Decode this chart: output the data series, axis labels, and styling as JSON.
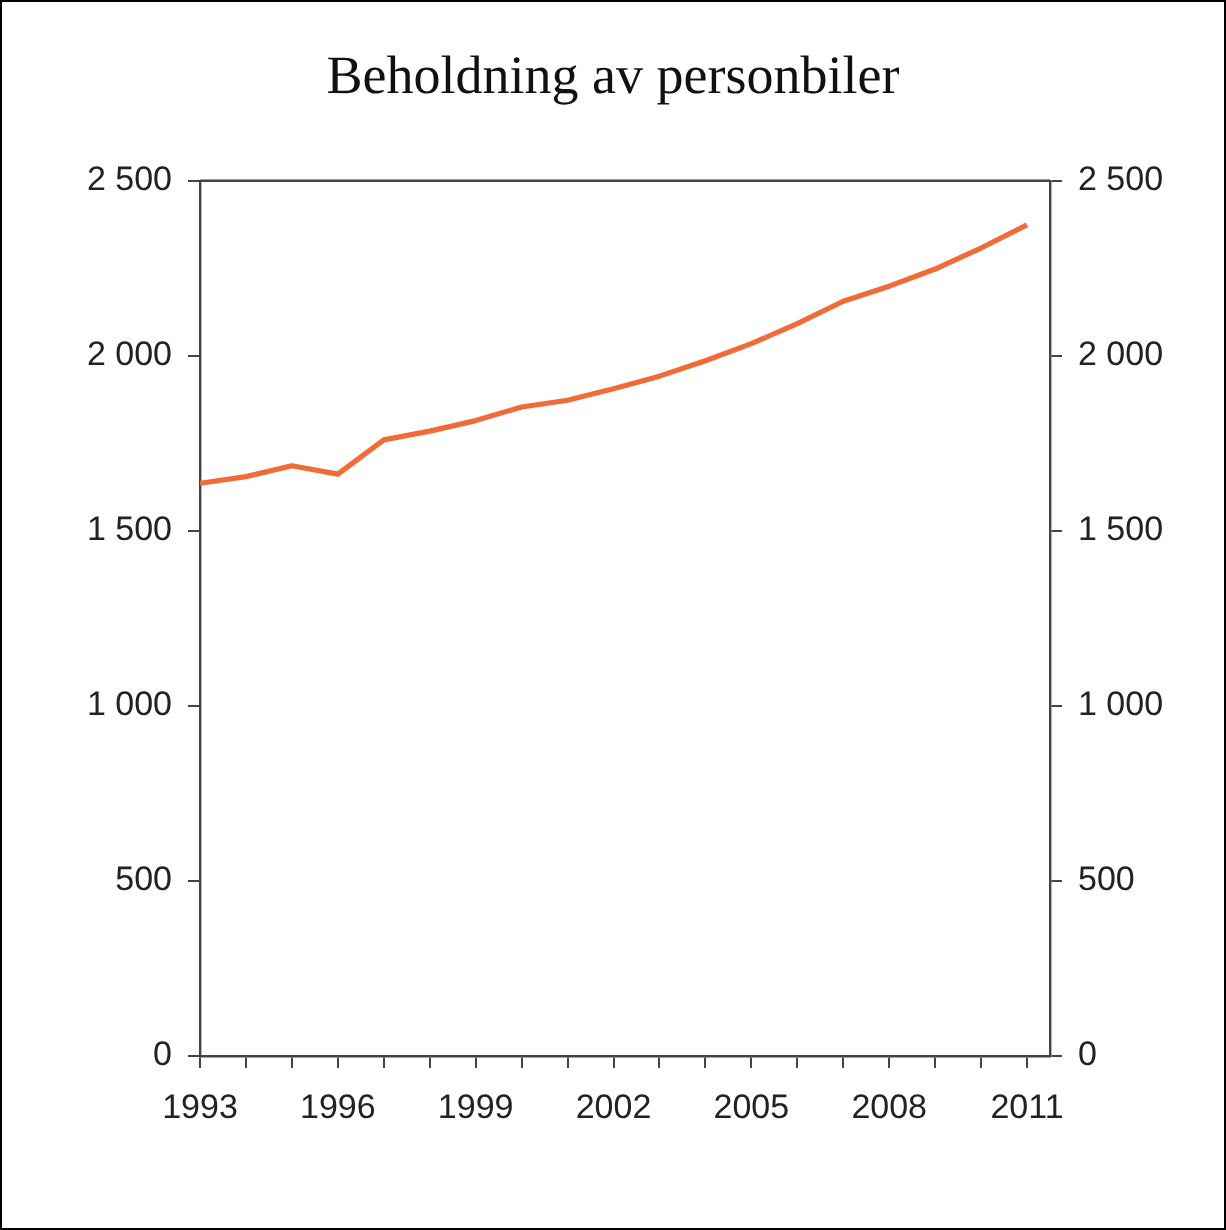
{
  "chart_data": {
    "type": "line",
    "title": "Beholdning av personbiler",
    "x": [
      1993,
      1994,
      1995,
      1996,
      1997,
      1998,
      1999,
      2000,
      2001,
      2002,
      2003,
      2004,
      2005,
      2006,
      2007,
      2008,
      2009,
      2010,
      2011
    ],
    "series": [
      {
        "color": "#f26b36",
        "values": [
          1636,
          1655,
          1686,
          1662,
          1760,
          1785,
          1815,
          1854,
          1873,
          1906,
          1942,
          1986,
          2035,
          2092,
          2156,
          2199,
          2248,
          2308,
          2374
        ]
      }
    ],
    "xlim": [
      1993,
      2011.5
    ],
    "xticks": [
      1993,
      {
        "value": 1994,
        "label": null
      },
      {
        "value": 1995,
        "label": null
      },
      1996,
      {
        "value": 1997,
        "label": null
      },
      {
        "value": 1998,
        "label": null
      },
      1999,
      {
        "value": 2000,
        "label": null
      },
      {
        "value": 2001,
        "label": null
      },
      2002,
      {
        "value": 2003,
        "label": null
      },
      {
        "value": 2004,
        "label": null
      },
      2005,
      {
        "value": 2006,
        "label": null
      },
      {
        "value": 2007,
        "label": null
      },
      2008,
      {
        "value": 2009,
        "label": null
      },
      {
        "value": 2010,
        "label": null
      },
      2011
    ],
    "ylim": [
      0,
      2500
    ],
    "yticks": [
      0,
      500,
      {
        "value": 1000,
        "label": "1 000"
      },
      {
        "value": 1500,
        "label": "1 500"
      },
      {
        "value": 2000,
        "label": "2 000"
      },
      {
        "value": 2500,
        "label": "2 500"
      }
    ],
    "y2lim": [
      0,
      2500
    ],
    "y2ticks": [
      0,
      500,
      {
        "value": 1000,
        "label": "1 000"
      },
      {
        "value": 1500,
        "label": "1 500"
      },
      {
        "value": 2000,
        "label": "2 000"
      },
      {
        "value": 2500,
        "label": "2 500"
      }
    ],
    "grid": false,
    "legend": false,
    "marker": "none",
    "line_style": "solid"
  }
}
